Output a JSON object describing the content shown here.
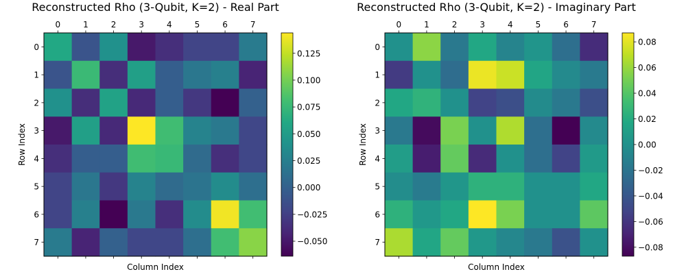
{
  "chart_data": [
    {
      "type": "heatmap",
      "title": "Reconstructed Rho (3-Qubit, K=2) - Real Part",
      "xlabel": "Column Index",
      "ylabel": "Row Index",
      "x_ticks": [
        "0",
        "1",
        "2",
        "3",
        "4",
        "5",
        "6",
        "7"
      ],
      "y_ticks": [
        "0",
        "1",
        "2",
        "3",
        "4",
        "5",
        "6",
        "7"
      ],
      "x_tick_position": "top",
      "colormap": "viridis",
      "vmin": -0.064,
      "vmax": 0.144,
      "colorbar_ticks": [
        -0.05,
        -0.025,
        0.0,
        0.025,
        0.05,
        0.075,
        0.1,
        0.125
      ],
      "colorbar_tick_labels": [
        "−0.050",
        "−0.025",
        "0.000",
        "0.025",
        "0.050",
        "0.075",
        "0.100",
        "0.125"
      ],
      "colorbar_placement": "right",
      "values": [
        [
          0.061,
          -0.01,
          0.04,
          -0.05,
          -0.036,
          -0.022,
          -0.022,
          0.022
        ],
        [
          -0.01,
          0.076,
          -0.037,
          0.053,
          -0.002,
          0.018,
          0.026,
          -0.043
        ],
        [
          0.04,
          -0.037,
          0.055,
          -0.04,
          -0.002,
          -0.03,
          -0.064,
          0.0
        ],
        [
          -0.05,
          0.053,
          -0.04,
          0.144,
          0.079,
          0.028,
          0.02,
          -0.02
        ],
        [
          -0.036,
          -0.002,
          -0.002,
          0.079,
          0.075,
          0.008,
          -0.036,
          -0.02
        ],
        [
          -0.022,
          0.018,
          -0.03,
          0.028,
          0.008,
          0.016,
          0.036,
          0.012
        ],
        [
          -0.022,
          0.026,
          -0.064,
          0.02,
          -0.036,
          0.036,
          0.14,
          0.08
        ],
        [
          0.022,
          -0.043,
          0.0,
          -0.02,
          -0.02,
          0.012,
          0.08,
          0.107
        ]
      ]
    },
    {
      "type": "heatmap",
      "title": "Reconstructed Rho (3-Qubit, K=2) - Imaginary Part",
      "xlabel": "Column Index",
      "ylabel": "Row Index",
      "x_ticks": [
        "0",
        "1",
        "2",
        "3",
        "4",
        "5",
        "6",
        "7"
      ],
      "y_ticks": [
        "0",
        "1",
        "2",
        "3",
        "4",
        "5",
        "6",
        "7"
      ],
      "x_tick_position": "top",
      "colormap": "viridis",
      "vmin": -0.087,
      "vmax": 0.087,
      "colorbar_ticks": [
        -0.08,
        -0.06,
        -0.04,
        -0.02,
        0.0,
        0.02,
        0.04,
        0.06,
        0.08
      ],
      "colorbar_tick_labels": [
        "−0.08",
        "−0.06",
        "−0.04",
        "−0.02",
        "0.00",
        "0.02",
        "0.04",
        "0.06",
        "0.08"
      ],
      "colorbar_placement": "right",
      "values": [
        [
          0.0,
          0.057,
          -0.017,
          0.017,
          -0.009,
          0.003,
          -0.024,
          -0.065
        ],
        [
          -0.057,
          0.0,
          -0.025,
          0.082,
          0.073,
          0.015,
          -0.005,
          -0.016
        ],
        [
          0.017,
          0.025,
          0.0,
          -0.052,
          -0.045,
          -0.004,
          -0.017,
          -0.045
        ],
        [
          -0.017,
          -0.082,
          0.052,
          0.0,
          0.066,
          -0.024,
          -0.087,
          -0.005
        ],
        [
          0.009,
          -0.073,
          0.045,
          -0.066,
          0.0,
          -0.024,
          -0.052,
          0.007
        ],
        [
          -0.003,
          -0.015,
          0.004,
          0.024,
          0.024,
          0.0,
          0.0,
          0.017
        ],
        [
          0.024,
          0.005,
          0.017,
          0.087,
          0.052,
          0.0,
          0.0,
          0.043
        ],
        [
          0.065,
          0.016,
          0.045,
          0.005,
          -0.007,
          -0.017,
          -0.043,
          0.0
        ]
      ]
    }
  ]
}
